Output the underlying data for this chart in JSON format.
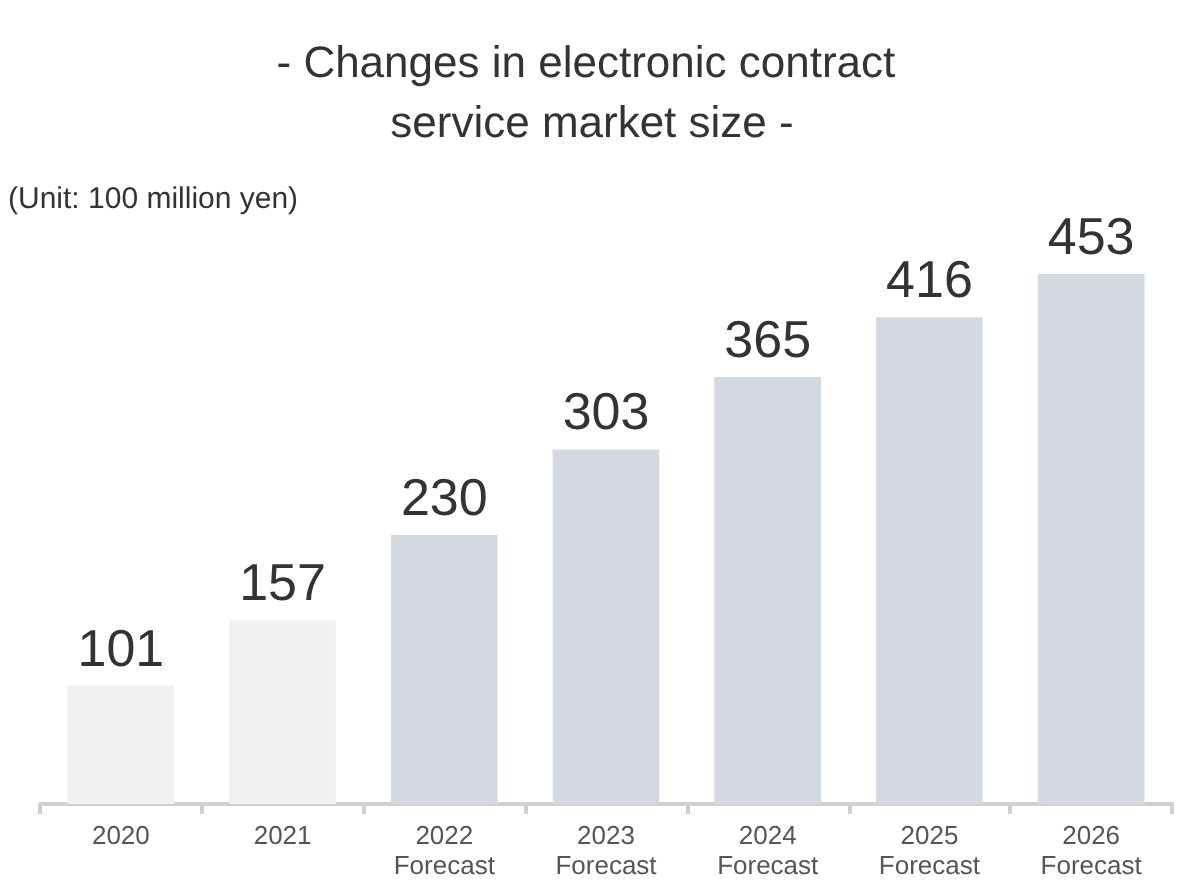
{
  "chart_data": {
    "type": "bar",
    "title": "- Changes in electronic contract service market size -",
    "annotations": [
      "(Unit: 100 million yen)"
    ],
    "categories": [
      "2020",
      "2021",
      "2022\nForecast",
      "2023\nForecast",
      "2024\nForecast",
      "2025\nForecast",
      "2026\nForecast"
    ],
    "values": [
      101,
      157,
      230,
      303,
      365,
      416,
      453
    ],
    "colors": [
      "#f0f0f0",
      "#f0f0f0",
      "#d4d8e0",
      "#d4d8e0",
      "#d4d8e0",
      "#d4d8e0",
      "#d4d8e0"
    ],
    "data_labels": true
  }
}
